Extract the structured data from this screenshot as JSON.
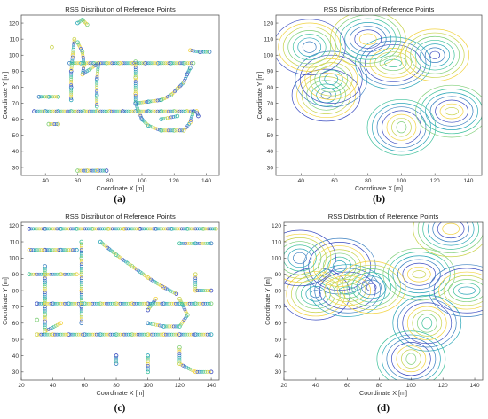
{
  "chart_data": [
    {
      "panel": "a",
      "type": "scatter",
      "title": "RSS Distribution of Reference Points",
      "xlabel": "Coordinate X [m]",
      "ylabel": "Coordinate Y [m]",
      "xlim": [
        25,
        148
      ],
      "ylim": [
        25,
        125
      ],
      "xticks": [
        40,
        60,
        80,
        100,
        120,
        140
      ],
      "yticks": [
        30,
        40,
        50,
        60,
        70,
        80,
        90,
        100,
        110,
        120
      ],
      "grid": false,
      "caption": "(a)",
      "series": [
        {
          "points": [
            [
              33,
              65
            ],
            [
              40,
              65
            ],
            [
              48,
              65
            ],
            [
              56,
              65
            ],
            [
              64,
              65
            ],
            [
              72,
              65
            ],
            [
              80,
              65
            ],
            [
              88,
              65
            ],
            [
              96,
              65
            ],
            [
              104,
              65
            ],
            [
              112,
              65
            ],
            [
              120,
              65
            ],
            [
              128,
              65
            ],
            [
              134,
              65
            ],
            [
              135,
              62
            ],
            [
              55,
              95
            ],
            [
              62,
              95
            ],
            [
              70,
              95
            ],
            [
              78,
              95
            ],
            [
              86,
              95
            ],
            [
              94,
              95
            ],
            [
              102,
              95
            ],
            [
              110,
              95
            ],
            [
              118,
              95
            ],
            [
              126,
              95
            ],
            [
              132,
              95
            ],
            [
              58,
              110
            ],
            [
              57,
              100
            ],
            [
              56,
              90
            ],
            [
              56,
              80
            ],
            [
              56,
              72
            ],
            [
              60,
              108
            ],
            [
              63,
              102
            ],
            [
              64,
              94
            ],
            [
              63,
              88
            ],
            [
              73,
              95
            ],
            [
              72,
              85
            ],
            [
              72,
              75
            ],
            [
              72,
              68
            ],
            [
              96,
              96
            ],
            [
              96,
              86
            ],
            [
              96,
              76
            ],
            [
              96,
              70
            ],
            [
              100,
              60
            ],
            [
              104,
              56
            ],
            [
              112,
              53
            ],
            [
              120,
              53
            ],
            [
              126,
              53
            ],
            [
              130,
              58
            ],
            [
              132,
              65
            ],
            [
              96,
              70
            ],
            [
              104,
              71
            ],
            [
              112,
              72
            ],
            [
              118,
              75
            ],
            [
              122,
              79
            ],
            [
              126,
              83
            ],
            [
              128,
              88
            ],
            [
              130,
              92
            ],
            [
              112,
              60
            ],
            [
              122,
              62
            ],
            [
              60,
              28
            ],
            [
              66,
              28
            ],
            [
              72,
              28
            ],
            [
              78,
              28
            ],
            [
              36,
              74
            ],
            [
              42,
              74
            ],
            [
              48,
              74
            ],
            [
              42,
              57
            ],
            [
              48,
              57
            ],
            [
              130,
              103
            ],
            [
              136,
              102
            ],
            [
              142,
              102
            ],
            [
              60,
              120
            ],
            [
              63,
              122
            ],
            [
              66,
              119
            ],
            [
              44,
              105
            ]
          ]
        }
      ]
    },
    {
      "panel": "b",
      "type": "contour",
      "title": "RSS Distribution of Reference Points",
      "xlabel": "Coordinate X [m]",
      "ylabel": "Coordinate Y [m]",
      "xlim": [
        25,
        148
      ],
      "ylim": [
        25,
        125
      ],
      "xticks": [
        40,
        60,
        80,
        100,
        120,
        140
      ],
      "yticks": [
        30,
        40,
        50,
        60,
        70,
        80,
        90,
        100,
        110,
        120
      ],
      "grid": false,
      "caption": "(b)",
      "series": [
        {
          "points": [
            [
              55,
              75
            ],
            [
              58,
              85
            ],
            [
              95,
              95
            ],
            [
              100,
              55
            ],
            [
              130,
              65
            ],
            [
              80,
              110
            ],
            [
              120,
              100
            ],
            [
              45,
              105
            ]
          ]
        }
      ]
    },
    {
      "panel": "c",
      "type": "scatter",
      "title": "RSS Distribution of Reference Points",
      "xlabel": "Coordinate X [m]",
      "ylabel": "Coordinate Y [m]",
      "xlim": [
        20,
        145
      ],
      "ylim": [
        25,
        122
      ],
      "xticks": [
        20,
        40,
        60,
        80,
        100,
        120,
        140
      ],
      "yticks": [
        30,
        40,
        50,
        60,
        70,
        80,
        90,
        100,
        110,
        120
      ],
      "grid": false,
      "caption": "(c)",
      "series": [
        {
          "points": [
            [
              25,
              118
            ],
            [
              35,
              118
            ],
            [
              45,
              118
            ],
            [
              55,
              118
            ],
            [
              65,
              118
            ],
            [
              75,
              118
            ],
            [
              85,
              118
            ],
            [
              95,
              118
            ],
            [
              105,
              118
            ],
            [
              115,
              118
            ],
            [
              125,
              118
            ],
            [
              135,
              118
            ],
            [
              143,
              118
            ],
            [
              25,
              105
            ],
            [
              35,
              105
            ],
            [
              45,
              105
            ],
            [
              55,
              105
            ],
            [
              25,
              90
            ],
            [
              35,
              90
            ],
            [
              45,
              90
            ],
            [
              55,
              90
            ],
            [
              30,
              72
            ],
            [
              40,
              72
            ],
            [
              50,
              72
            ],
            [
              60,
              72
            ],
            [
              70,
              72
            ],
            [
              80,
              72
            ],
            [
              90,
              72
            ],
            [
              100,
              72
            ],
            [
              110,
              72
            ],
            [
              120,
              72
            ],
            [
              130,
              72
            ],
            [
              140,
              72
            ],
            [
              30,
              53
            ],
            [
              40,
              53
            ],
            [
              50,
              53
            ],
            [
              60,
              53
            ],
            [
              70,
              53
            ],
            [
              80,
              53
            ],
            [
              90,
              53
            ],
            [
              100,
              53
            ],
            [
              110,
              53
            ],
            [
              120,
              53
            ],
            [
              130,
              53
            ],
            [
              140,
              53
            ],
            [
              58,
              110
            ],
            [
              58,
              100
            ],
            [
              58,
              90
            ],
            [
              58,
              80
            ],
            [
              58,
              70
            ],
            [
              58,
              60
            ],
            [
              70,
              110
            ],
            [
              80,
              102
            ],
            [
              90,
              95
            ],
            [
              100,
              88
            ],
            [
              110,
              82
            ],
            [
              118,
              78
            ],
            [
              100,
              60
            ],
            [
              110,
              58
            ],
            [
              120,
              58
            ],
            [
              125,
              65
            ],
            [
              120,
              75
            ],
            [
              105,
              75
            ],
            [
              100,
              68
            ],
            [
              35,
              95
            ],
            [
              35,
              85
            ],
            [
              35,
              75
            ],
            [
              35,
              65
            ],
            [
              35,
              55
            ],
            [
              45,
              60
            ],
            [
              80,
              40
            ],
            [
              80,
              35
            ],
            [
              100,
              40
            ],
            [
              100,
              30
            ],
            [
              120,
              45
            ],
            [
              120,
              35
            ],
            [
              130,
              30
            ],
            [
              140,
              30
            ],
            [
              140,
              109
            ],
            [
              130,
              109
            ],
            [
              120,
              109
            ],
            [
              30,
              62
            ],
            [
              130,
              90
            ],
            [
              130,
              80
            ],
            [
              140,
              80
            ]
          ]
        }
      ]
    },
    {
      "panel": "d",
      "type": "contour",
      "title": "RSS Distribution of Reference Points",
      "xlabel": "Coordinate X [m]",
      "ylabel": "Coordinate Y [m]",
      "xlim": [
        20,
        145
      ],
      "ylim": [
        25,
        122
      ],
      "xticks": [
        20,
        40,
        60,
        80,
        100,
        120,
        140
      ],
      "yticks": [
        30,
        40,
        50,
        60,
        70,
        80,
        90,
        100,
        110,
        120
      ],
      "grid": false,
      "caption": "(d)",
      "series": [
        {
          "points": [
            [
              40,
              78
            ],
            [
              55,
              95
            ],
            [
              60,
              80
            ],
            [
              100,
              38
            ],
            [
              105,
              90
            ],
            [
              125,
              118
            ],
            [
              75,
              82
            ],
            [
              30,
              100
            ],
            [
              135,
              80
            ],
            [
              110,
              60
            ]
          ]
        }
      ]
    }
  ]
}
